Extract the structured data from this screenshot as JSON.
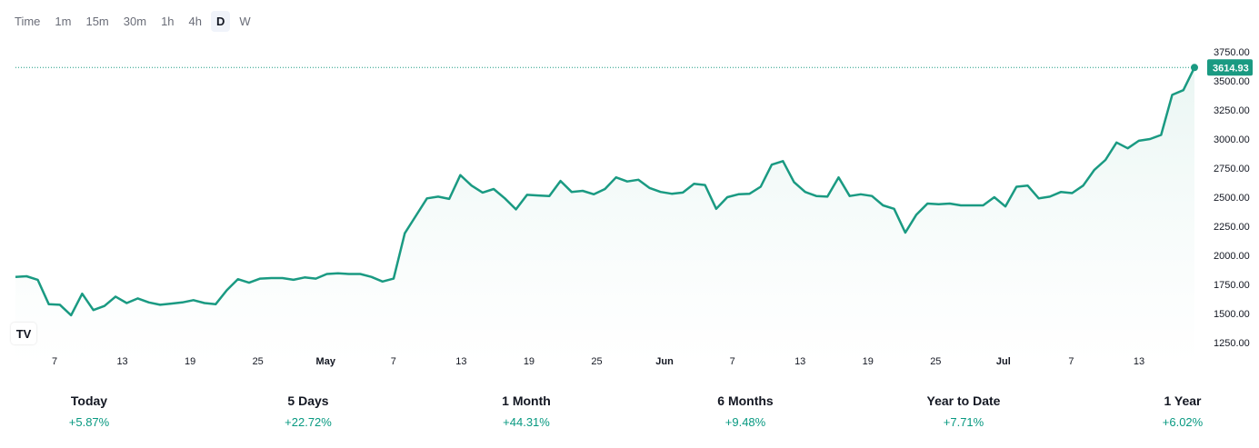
{
  "toolbar": {
    "items": [
      "Time",
      "1m",
      "15m",
      "30m",
      "1h",
      "4h",
      "D",
      "W"
    ],
    "active": "D"
  },
  "colors": {
    "line": "#1a9a82",
    "fill": "#e8f5f2",
    "grid_dotted": "#1a9a82",
    "price_tag": "#1a9a82",
    "positive": "#089981"
  },
  "logo_text": "TV",
  "chart_data": {
    "type": "area",
    "ylim": [
      1250,
      3750
    ],
    "yticks": [
      1250,
      1500,
      1750,
      2000,
      2250,
      2500,
      2750,
      3000,
      3250,
      3500,
      3750
    ],
    "ytick_labels": [
      "1250.00",
      "1500.00",
      "1750.00",
      "2000.00",
      "2250.00",
      "2500.00",
      "2750.00",
      "3000.00",
      "3250.00",
      "3500.00",
      "3750.00"
    ],
    "xtick_labels": [
      "7",
      "13",
      "19",
      "25",
      "May",
      "7",
      "13",
      "19",
      "25",
      "Jun",
      "7",
      "13",
      "19",
      "25",
      "Jul",
      "7",
      "13"
    ],
    "last_price_label": "3614.93",
    "last_value": 3614.93,
    "grid": false,
    "values": [
      1815,
      1820,
      1790,
      1580,
      1575,
      1485,
      1670,
      1530,
      1565,
      1645,
      1590,
      1630,
      1595,
      1575,
      1585,
      1595,
      1615,
      1590,
      1580,
      1700,
      1795,
      1765,
      1800,
      1805,
      1805,
      1790,
      1810,
      1800,
      1840,
      1845,
      1840,
      1840,
      1815,
      1775,
      1800,
      2190,
      2340,
      2490,
      2505,
      2485,
      2690,
      2600,
      2540,
      2570,
      2490,
      2395,
      2520,
      2515,
      2510,
      2640,
      2545,
      2555,
      2525,
      2570,
      2670,
      2635,
      2650,
      2580,
      2545,
      2530,
      2540,
      2615,
      2605,
      2400,
      2500,
      2525,
      2530,
      2590,
      2780,
      2810,
      2630,
      2545,
      2510,
      2505,
      2670,
      2510,
      2525,
      2510,
      2430,
      2400,
      2195,
      2350,
      2445,
      2440,
      2445,
      2430,
      2430,
      2430,
      2500,
      2420,
      2590,
      2600,
      2490,
      2505,
      2545,
      2535,
      2600,
      2735,
      2820,
      2970,
      2920,
      2985,
      3000,
      3035,
      3380,
      3420,
      3614.93
    ]
  },
  "performance": [
    {
      "label": "Today",
      "value": "+5.87%"
    },
    {
      "label": "5 Days",
      "value": "+22.72%"
    },
    {
      "label": "1 Month",
      "value": "+44.31%"
    },
    {
      "label": "6 Months",
      "value": "+9.48%"
    },
    {
      "label": "Year to Date",
      "value": "+7.71%"
    },
    {
      "label": "1 Year",
      "value": "+6.02%"
    }
  ]
}
